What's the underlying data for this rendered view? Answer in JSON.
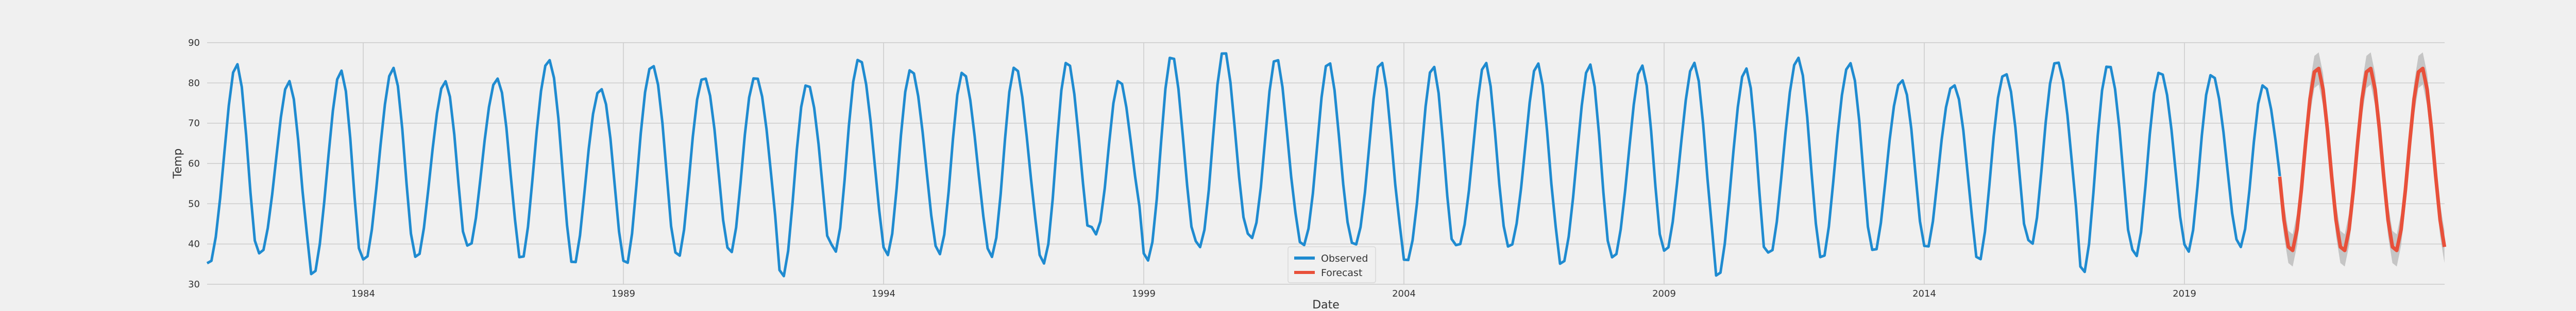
{
  "chart_data": {
    "type": "line",
    "xlabel": "Date",
    "ylabel": "Temp",
    "xlim": [
      1981.0,
      2024.0
    ],
    "ylim": [
      30,
      90
    ],
    "yticks": [
      30,
      40,
      50,
      60,
      70,
      80,
      90
    ],
    "xticks": [
      1984,
      1989,
      1994,
      1999,
      2004,
      2009,
      2014,
      2019
    ],
    "xtick_labels": [
      "1984",
      "1989",
      "1994",
      "1999",
      "2004",
      "2009",
      "2014",
      "2019"
    ],
    "grid": true,
    "legend_position": "bottom-center",
    "series": [
      {
        "name": "Observed",
        "color": "#1f8bd0",
        "seasonal": {
          "start": 1981.0,
          "end": 2020.83,
          "mean": 60,
          "amplitude": 23,
          "period_years": 1,
          "peak_phase": 0.55,
          "noise": 3
        },
        "annual_extremes": [
          {
            "year": 1981,
            "min": 34,
            "max": 84
          },
          {
            "year": 1982,
            "min": 37,
            "max": 80
          },
          {
            "year": 1983,
            "min": 32,
            "max": 83
          },
          {
            "year": 1984,
            "min": 36,
            "max": 84
          },
          {
            "year": 1985,
            "min": 37,
            "max": 81
          },
          {
            "year": 1986,
            "min": 40,
            "max": 82
          },
          {
            "year": 1987,
            "min": 37,
            "max": 87
          },
          {
            "year": 1988,
            "min": 36,
            "max": 80
          },
          {
            "year": 1989,
            "min": 36,
            "max": 86
          },
          {
            "year": 1990,
            "min": 38,
            "max": 83
          },
          {
            "year": 1991,
            "min": 39,
            "max": 83
          },
          {
            "year": 1992,
            "min": 33,
            "max": 81
          },
          {
            "year": 1993,
            "min": 39,
            "max": 87
          },
          {
            "year": 1994,
            "min": 38,
            "max": 84
          },
          {
            "year": 1995,
            "min": 38,
            "max": 83
          },
          {
            "year": 1996,
            "min": 37,
            "max": 84
          },
          {
            "year": 1997,
            "min": 35,
            "max": 85
          },
          {
            "year": 1998,
            "min": 42,
            "max": 80
          },
          {
            "year": 1999,
            "min": 35,
            "max": 86
          },
          {
            "year": 2000,
            "min": 38,
            "max": 87
          },
          {
            "year": 2001,
            "min": 40,
            "max": 85
          },
          {
            "year": 2002,
            "min": 38,
            "max": 84
          },
          {
            "year": 2003,
            "min": 38,
            "max": 84
          },
          {
            "year": 2004,
            "min": 34,
            "max": 83
          },
          {
            "year": 2005,
            "min": 38,
            "max": 84
          },
          {
            "year": 2006,
            "min": 38,
            "max": 84
          },
          {
            "year": 2007,
            "min": 34,
            "max": 84
          },
          {
            "year": 2008,
            "min": 36,
            "max": 84
          },
          {
            "year": 2009,
            "min": 38,
            "max": 85
          },
          {
            "year": 2010,
            "min": 32,
            "max": 84
          },
          {
            "year": 2011,
            "min": 38,
            "max": 87
          },
          {
            "year": 2012,
            "min": 37,
            "max": 86
          },
          {
            "year": 2013,
            "min": 39,
            "max": 82
          },
          {
            "year": 2014,
            "min": 40,
            "max": 81
          },
          {
            "year": 2015,
            "min": 37,
            "max": 84
          },
          {
            "year": 2016,
            "min": 41,
            "max": 87
          },
          {
            "year": 2017,
            "min": 34,
            "max": 86
          },
          {
            "year": 2018,
            "min": 38,
            "max": 84
          },
          {
            "year": 2019,
            "min": 39,
            "max": 83
          },
          {
            "year": 2020,
            "min": 40,
            "max": 80
          }
        ]
      },
      {
        "name": "Forecast",
        "color": "#e8503a",
        "band_color": "#a9a9a9",
        "seasonal": {
          "start": 2020.83,
          "end": 2024.0,
          "mean": 61,
          "amplitude": 23,
          "period_years": 1,
          "peak_phase": 0.55,
          "noise": 0
        },
        "interval_halfwidth": 4
      }
    ]
  }
}
